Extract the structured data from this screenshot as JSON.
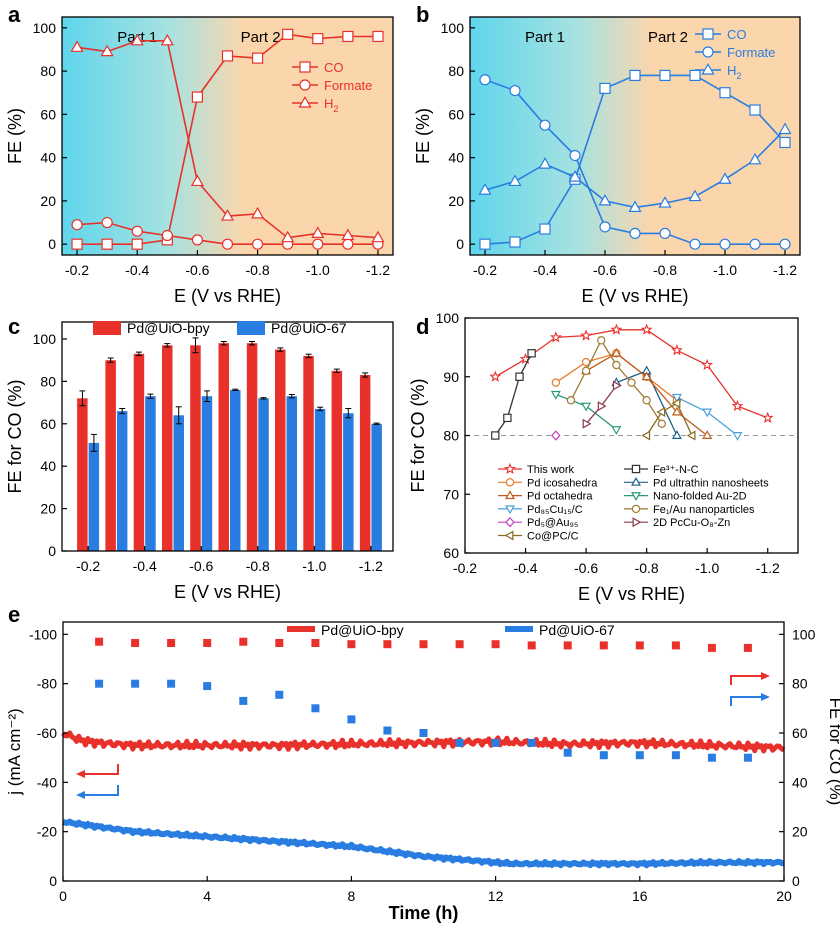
{
  "colors": {
    "red": "#e8312a",
    "blue": "#2a7de0",
    "cyan": "#5fd6ec",
    "peach": "#fbd6ad",
    "black": "#000000",
    "gray": "#999999"
  },
  "chart_data": [
    {
      "panel": "a",
      "type": "line",
      "title": "",
      "xlabel": "E (V vs RHE)",
      "ylabel": "FE (%)",
      "xlim": [
        -0.15,
        -1.25
      ],
      "ylim": [
        -5,
        105
      ],
      "x": [
        -0.2,
        -0.3,
        -0.4,
        -0.5,
        -0.6,
        -0.7,
        -0.8,
        -0.9,
        -1.0,
        -1.1,
        -1.2
      ],
      "xticks": [
        -0.2,
        -0.4,
        -0.6,
        -0.8,
        -1.0,
        -1.2
      ],
      "yticks": [
        0,
        20,
        40,
        60,
        80,
        100
      ],
      "region_labels": [
        "Part 1",
        "Part 2"
      ],
      "legend_position": "top-right",
      "series": [
        {
          "name": "CO",
          "marker": "square",
          "values": [
            0,
            0,
            0,
            2,
            68,
            87,
            86,
            97,
            95,
            96,
            96
          ]
        },
        {
          "name": "Formate",
          "marker": "circle",
          "values": [
            9,
            10,
            6,
            4,
            2,
            0,
            0,
            0,
            0,
            0,
            0
          ]
        },
        {
          "name": "H2",
          "marker": "triangle",
          "values": [
            91,
            89,
            94,
            94,
            29,
            13,
            14,
            3,
            5,
            4,
            3
          ]
        }
      ]
    },
    {
      "panel": "b",
      "type": "line",
      "title": "",
      "xlabel": "E (V vs RHE)",
      "ylabel": "FE (%)",
      "xlim": [
        -0.15,
        -1.25
      ],
      "ylim": [
        -5,
        105
      ],
      "x": [
        -0.2,
        -0.3,
        -0.4,
        -0.5,
        -0.6,
        -0.7,
        -0.8,
        -0.9,
        -1.0,
        -1.1,
        -1.2
      ],
      "xticks": [
        -0.2,
        -0.4,
        -0.6,
        -0.8,
        -1.0,
        -1.2
      ],
      "yticks": [
        0,
        20,
        40,
        60,
        80,
        100
      ],
      "region_labels": [
        "Part 1",
        "Part 2"
      ],
      "legend_position": "top-right",
      "series": [
        {
          "name": "CO",
          "marker": "square",
          "values": [
            0,
            1,
            7,
            30,
            72,
            78,
            78,
            78,
            70,
            62,
            47
          ]
        },
        {
          "name": "Formate",
          "marker": "circle",
          "values": [
            76,
            71,
            55,
            41,
            8,
            5,
            5,
            0,
            0,
            0,
            0
          ]
        },
        {
          "name": "H2",
          "marker": "triangle",
          "values": [
            25,
            29,
            37,
            31,
            20,
            17,
            19,
            22,
            30,
            39,
            53
          ]
        }
      ]
    },
    {
      "panel": "c",
      "type": "bar",
      "xlabel": "E (V vs RHE)",
      "ylabel": "FE for CO (%)",
      "ylim": [
        0,
        108
      ],
      "yticks": [
        0,
        20,
        40,
        60,
        80,
        100
      ],
      "categories": [
        "-0.2",
        "-0.3",
        "-0.4",
        "-0.5",
        "-0.6",
        "-0.7",
        "-0.8",
        "-0.9",
        "-1.0",
        "-1.1",
        "-1.2"
      ],
      "xtick_labels": [
        "-0.2",
        "-0.4",
        "-0.6",
        "-0.8",
        "-1.0",
        "-1.2"
      ],
      "legend_position": "top",
      "series": [
        {
          "name": "Pd@UiO-bpy",
          "values": [
            72,
            90,
            93,
            97,
            97,
            98,
            98,
            95,
            92,
            85,
            83
          ],
          "errors": [
            3.5,
            1,
            0.8,
            0.8,
            3.5,
            0.8,
            0.8,
            0.8,
            0.8,
            0.8,
            1
          ]
        },
        {
          "name": "Pd@UiO-67",
          "values": [
            51,
            66,
            73,
            64,
            73,
            76,
            72,
            73,
            67,
            65,
            60
          ],
          "errors": [
            4,
            1.2,
            1,
            4,
            2.5,
            0.3,
            0.3,
            0.8,
            0.8,
            2.2,
            0.3
          ]
        }
      ]
    },
    {
      "panel": "d",
      "type": "line",
      "xlabel": "E (V vs RHE)",
      "ylabel": "FE for CO (%)",
      "xlim": [
        -0.2,
        -1.3
      ],
      "ylim": [
        60,
        100
      ],
      "xticks": [
        -0.2,
        -0.4,
        -0.6,
        -0.8,
        -1.0,
        -1.2
      ],
      "yticks": [
        60,
        70,
        80,
        90,
        100
      ],
      "reference_line": 80,
      "legend_position": "bottom-center",
      "series": [
        {
          "name": "This work",
          "marker": "star",
          "color": "#e8312a",
          "x": [
            -0.3,
            -0.4,
            -0.5,
            -0.6,
            -0.7,
            -0.8,
            -0.9,
            -1.0,
            -1.1,
            -1.2
          ],
          "values": [
            90,
            93,
            96.7,
            97,
            98,
            98,
            94.5,
            92,
            85,
            83
          ]
        },
        {
          "name": "Fe³⁺-N-C",
          "marker": "square",
          "color": "#333333",
          "x": [
            -0.3,
            -0.34,
            -0.38,
            -0.42
          ],
          "values": [
            80,
            83,
            90,
            94
          ]
        },
        {
          "name": "Pd icosahedra",
          "marker": "circle",
          "color": "#e87a2a",
          "x": [
            -0.5,
            -0.6,
            -0.7,
            -0.8,
            -0.9
          ],
          "values": [
            89,
            92.5,
            94,
            90,
            86
          ]
        },
        {
          "name": "Pd ultrathin nanosheets",
          "marker": "triangle",
          "color": "#1f5f8b",
          "x": [
            -0.7,
            -0.8,
            -0.9
          ],
          "values": [
            89,
            91,
            80
          ]
        },
        {
          "name": "Pd octahedra",
          "marker": "triangle",
          "color": "#c05a1a",
          "x": [
            -0.6,
            -0.7,
            -0.8,
            -0.9,
            -1.0
          ],
          "values": [
            91,
            94,
            90,
            84,
            80
          ]
        },
        {
          "name": "Nano-folded Au-2D",
          "marker": "triangle-down",
          "color": "#2a9a7a",
          "x": [
            -0.5,
            -0.6,
            -0.7
          ],
          "values": [
            87,
            85,
            81
          ]
        },
        {
          "name": "Pd₈₅Cu₁₅/C",
          "marker": "triangle-down",
          "color": "#4aa0d8",
          "x": [
            -0.9,
            -1.0,
            -1.1
          ],
          "values": [
            86.5,
            84,
            80
          ]
        },
        {
          "name": "Fe₁/Au nanoparticles",
          "marker": "circle",
          "color": "#a07a30",
          "x": [
            -0.55,
            -0.6,
            -0.65,
            -0.7,
            -0.75,
            -0.8,
            -0.85
          ],
          "values": [
            86,
            91,
            96.2,
            92,
            89,
            86,
            82
          ]
        },
        {
          "name": "Pd₅@Au₉₅",
          "marker": "diamond",
          "color": "#c040c0",
          "x": [
            -0.5
          ],
          "values": [
            80
          ]
        },
        {
          "name": "2D PcCu-O₈-Zn",
          "marker": "triangle-right",
          "color": "#8b3a4a",
          "x": [
            -0.6,
            -0.65,
            -0.7
          ],
          "values": [
            82,
            85,
            88.5
          ]
        },
        {
          "name": "Co@PC/C",
          "marker": "triangle-left",
          "color": "#8a6a20",
          "x": [
            -0.8,
            -0.85,
            -0.9,
            -0.95
          ],
          "values": [
            80,
            84,
            85.5,
            80
          ]
        }
      ]
    },
    {
      "panel": "e",
      "type": "line",
      "xlabel": "Time (h)",
      "ylabel_left": "j (mA cm⁻²)",
      "ylabel_right": "FE for CO (%)",
      "xlim": [
        0,
        20
      ],
      "ylim_left": [
        0,
        -105
      ],
      "ylim_right": [
        0,
        105
      ],
      "xticks": [
        0,
        4,
        8,
        12,
        16,
        20
      ],
      "yticks_left": [
        0,
        -20,
        -40,
        -60,
        -80,
        -100
      ],
      "yticks_right": [
        0,
        20,
        40,
        60,
        80,
        100
      ],
      "legend_position": "top",
      "series": [
        {
          "name": "Pd@UiO-bpy",
          "axis": "left",
          "kind": "current",
          "x": [
            0,
            0.5,
            1,
            2,
            4,
            6,
            8,
            10,
            12,
            14,
            16,
            18,
            20
          ],
          "values": [
            -60,
            -57,
            -56,
            -55,
            -55,
            -55,
            -55.5,
            -56,
            -56.5,
            -55.5,
            -56,
            -55,
            -54
          ]
        },
        {
          "name": "Pd@UiO-67",
          "axis": "left",
          "kind": "current",
          "x": [
            0,
            0.5,
            1,
            2,
            4,
            6,
            8,
            10,
            12,
            12.5,
            14,
            16,
            18,
            20
          ],
          "values": [
            -24,
            -23,
            -22,
            -20,
            -18,
            -16,
            -14,
            -10,
            -7.5,
            -7,
            -7,
            -7,
            -7.5,
            -7.5
          ]
        },
        {
          "name": "Pd@UiO-bpy FE",
          "axis": "right",
          "kind": "fe",
          "x": [
            1,
            2,
            3,
            4,
            5,
            6,
            7,
            8,
            9,
            10,
            11,
            12,
            13,
            14,
            15,
            16,
            17,
            18,
            19
          ],
          "values": [
            97,
            96.5,
            96.5,
            96.5,
            97,
            96.5,
            96.5,
            96,
            96,
            96,
            96,
            96,
            95.5,
            95.5,
            95.5,
            95.5,
            95.5,
            94.5,
            94.5
          ]
        },
        {
          "name": "Pd@UiO-67 FE",
          "axis": "right",
          "kind": "fe",
          "x": [
            1,
            2,
            3,
            4,
            5,
            6,
            7,
            8,
            9,
            10,
            11,
            12,
            13,
            14,
            15,
            16,
            17,
            18,
            19
          ],
          "values": [
            80,
            80,
            80,
            79,
            73,
            75.5,
            70,
            65.5,
            61,
            60,
            56,
            56,
            56,
            52,
            51,
            51,
            51,
            50,
            50
          ]
        }
      ]
    }
  ]
}
